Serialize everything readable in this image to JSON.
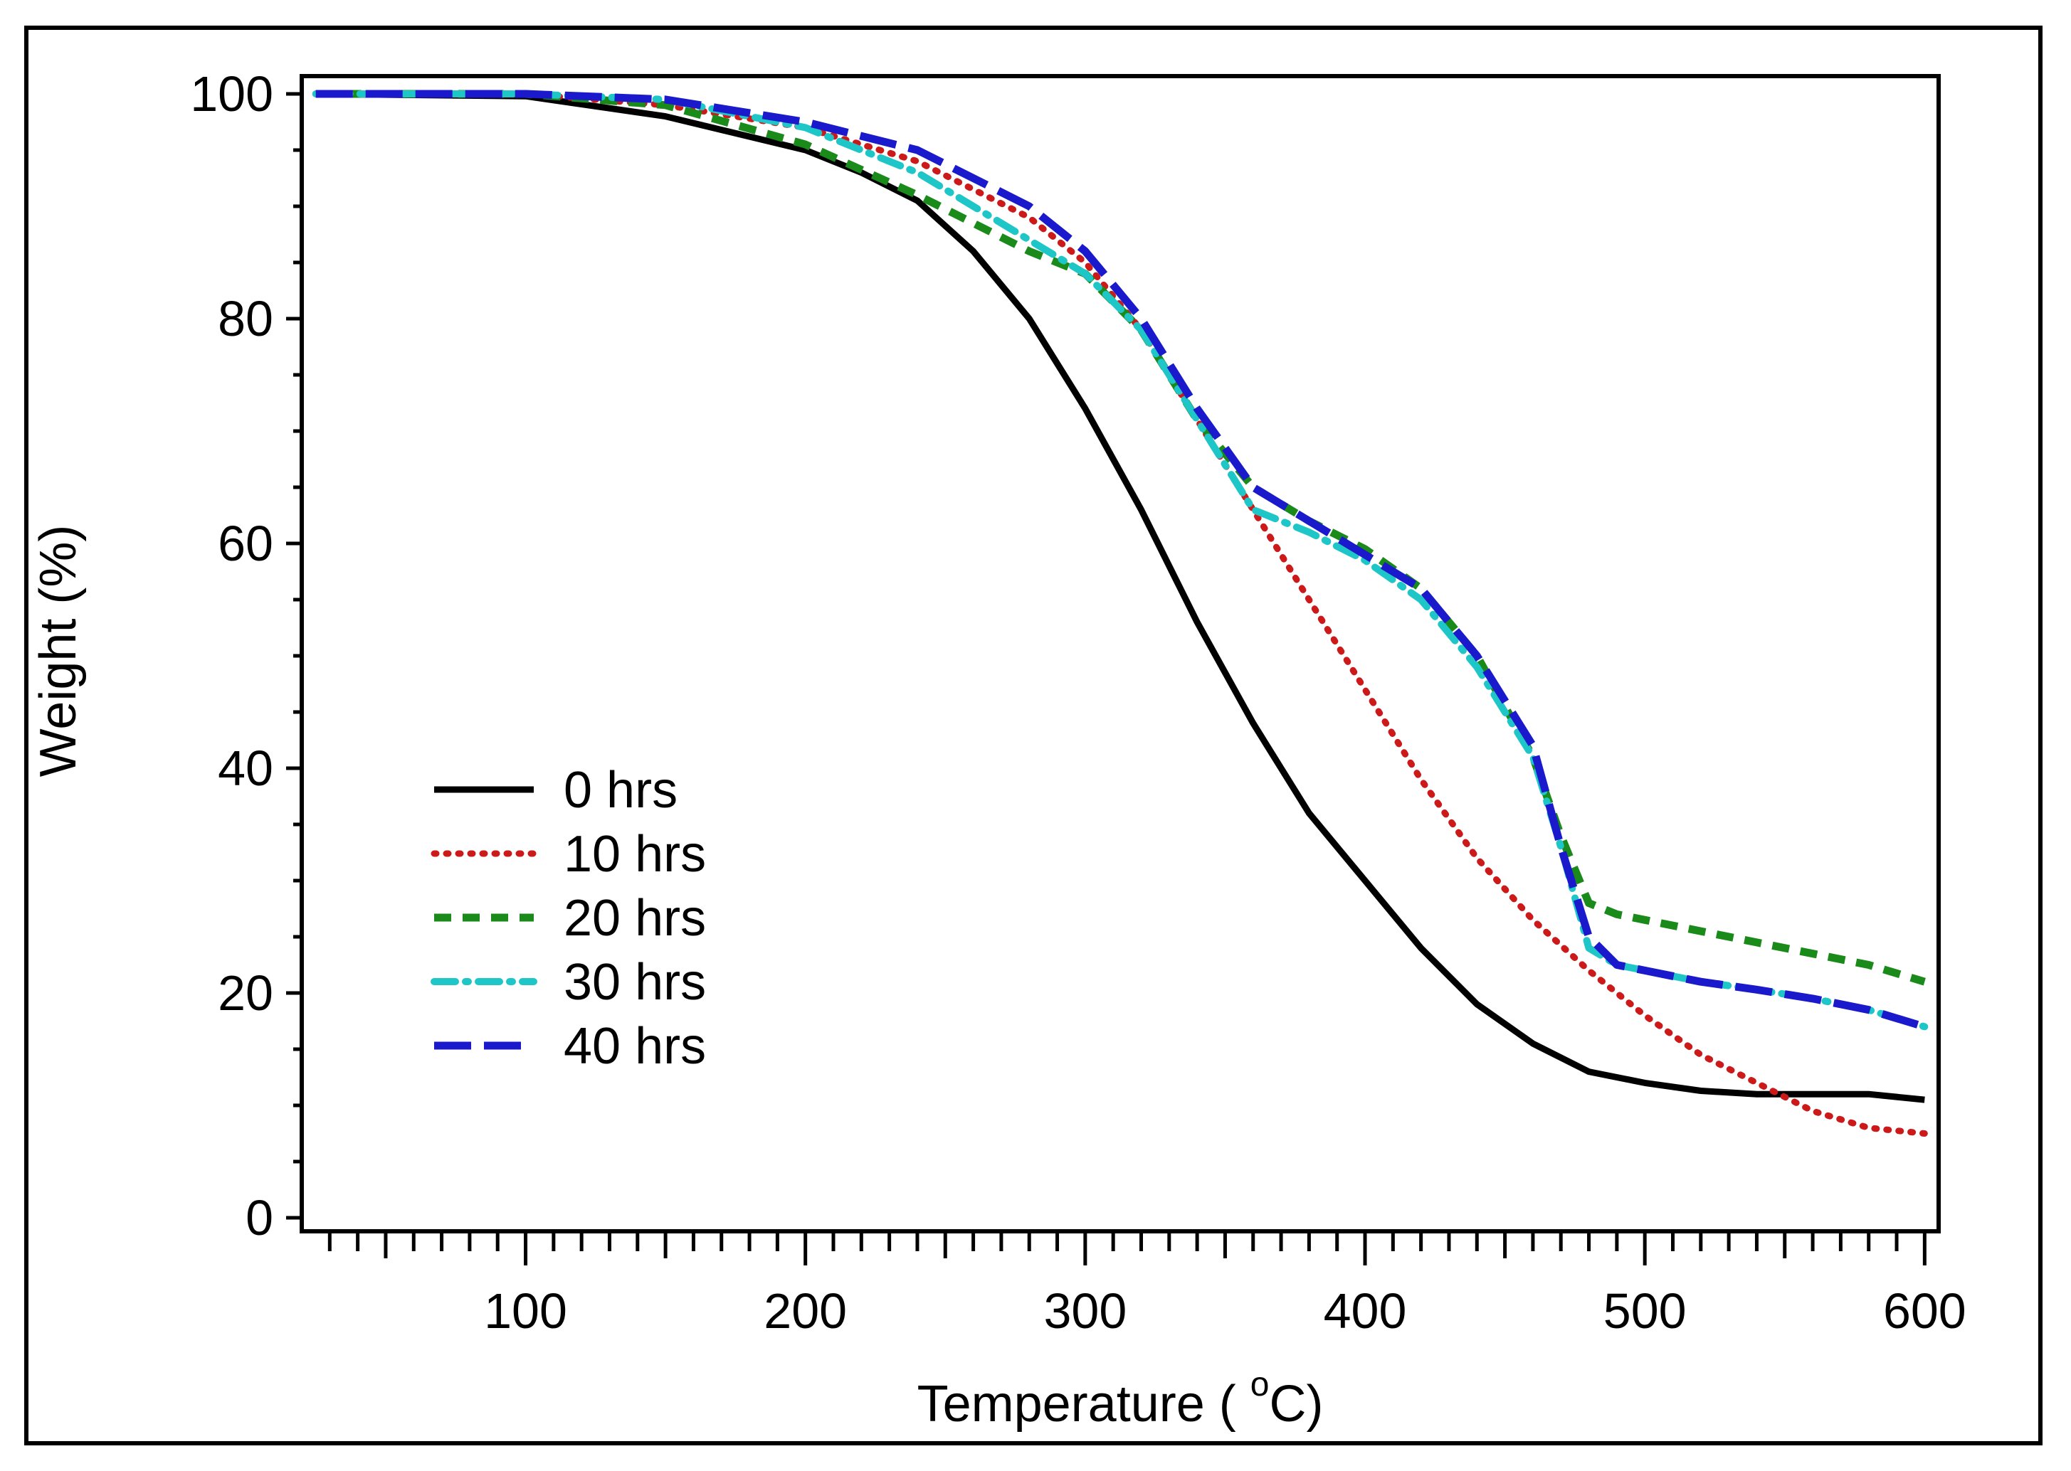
{
  "chart_data": {
    "type": "line",
    "title": "",
    "xlabel": "Temperature ( °C)",
    "xlabel_parts": {
      "prefix": "Temperature ( ",
      "superscript": "o",
      "suffix": "C)"
    },
    "ylabel": "Weight (%)",
    "xlim": [
      20,
      605
    ],
    "ylim": [
      0,
      101
    ],
    "x_ticks": [
      100,
      200,
      300,
      400,
      500,
      600
    ],
    "x_tick_labels": [
      "100",
      "200",
      "300",
      "400",
      "500",
      "600"
    ],
    "y_ticks": [
      0,
      20,
      40,
      60,
      80,
      100
    ],
    "y_tick_labels": [
      "0",
      "20",
      "40",
      "60",
      "80",
      "100"
    ],
    "x_minor_step": 10,
    "y_minor_step": 5,
    "grid": false,
    "legend_position": "lower-left",
    "series": [
      {
        "name": "0 hrs",
        "color": "#000000",
        "style": "solid",
        "x": [
          25,
          100,
          150,
          200,
          220,
          240,
          260,
          280,
          300,
          320,
          340,
          360,
          380,
          400,
          420,
          440,
          460,
          480,
          500,
          520,
          540,
          560,
          580,
          600
        ],
        "y": [
          100,
          99.8,
          98,
          95,
          93,
          90.5,
          86,
          80,
          72,
          63,
          53,
          44,
          36,
          30,
          24,
          19,
          15.5,
          13,
          12,
          11.3,
          11,
          11,
          11,
          10.5
        ]
      },
      {
        "name": "10 hrs",
        "color": "#cc1a1a",
        "style": "dotted",
        "x": [
          25,
          100,
          150,
          200,
          240,
          280,
          300,
          320,
          340,
          360,
          380,
          400,
          420,
          440,
          460,
          480,
          500,
          520,
          540,
          560,
          580,
          600
        ],
        "y": [
          100,
          100,
          99,
          97,
          94,
          89,
          85,
          79,
          71,
          63,
          55,
          47,
          39,
          32,
          26.5,
          22,
          18,
          14.5,
          12,
          9.5,
          8,
          7.5
        ]
      },
      {
        "name": "20 hrs",
        "color": "#1a8a1a",
        "style": "dashed",
        "x": [
          25,
          100,
          150,
          200,
          240,
          280,
          300,
          320,
          340,
          360,
          380,
          400,
          420,
          440,
          460,
          470,
          480,
          490,
          500,
          520,
          540,
          560,
          580,
          600
        ],
        "y": [
          100,
          100,
          99,
          95.5,
          91,
          86,
          84,
          79,
          71,
          65,
          62,
          59.5,
          56,
          50,
          41,
          34,
          28,
          27,
          26.5,
          25.5,
          24.5,
          23.5,
          22.5,
          21
        ]
      },
      {
        "name": "30 hrs",
        "color": "#1ec6c8",
        "style": "dashdot",
        "x": [
          25,
          100,
          150,
          200,
          240,
          280,
          300,
          320,
          340,
          360,
          380,
          400,
          420,
          440,
          460,
          470,
          480,
          490,
          500,
          520,
          540,
          560,
          580,
          600
        ],
        "y": [
          100,
          100,
          99.5,
          97,
          93,
          87,
          84,
          79,
          71,
          63,
          61,
          58.5,
          55,
          49,
          41,
          33,
          24,
          22.5,
          22,
          21,
          20.3,
          19.5,
          18.5,
          17
        ]
      },
      {
        "name": "40 hrs",
        "color": "#1a1acc",
        "style": "longdash",
        "x": [
          25,
          100,
          150,
          200,
          240,
          280,
          300,
          320,
          340,
          360,
          380,
          400,
          420,
          440,
          460,
          470,
          480,
          490,
          500,
          520,
          540,
          560,
          580,
          600
        ],
        "y": [
          100,
          100,
          99.5,
          97.5,
          95,
          90,
          86,
          80,
          72,
          65,
          62,
          59,
          56,
          50,
          42,
          33,
          25,
          22.5,
          22,
          21,
          20.3,
          19.5,
          18.5,
          17
        ]
      }
    ]
  }
}
